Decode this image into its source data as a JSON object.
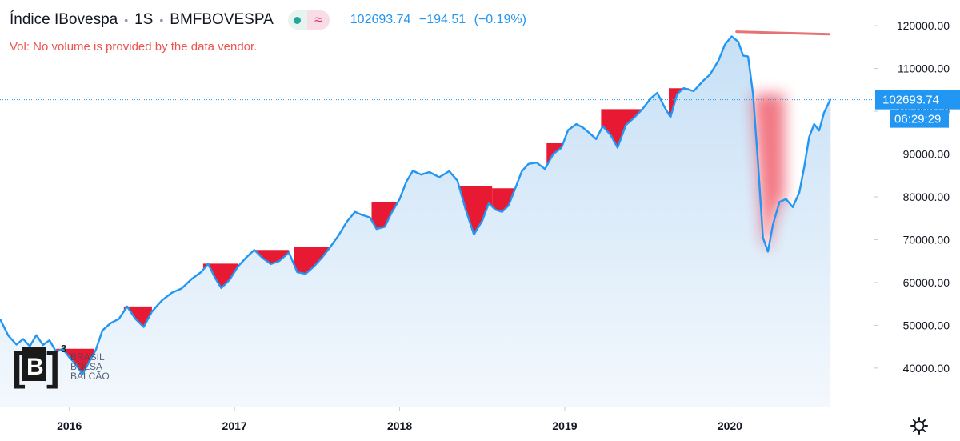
{
  "header": {
    "symbol_name": "Índice IBovespa",
    "interval": "1S",
    "exchange": "BMFBOVESPA",
    "wave_icon": "≈",
    "last_price": "102693.74",
    "change": "−194.51",
    "change_pct": "(−0.19%)"
  },
  "volume_notice": "Vol: No volume is provided by the data vendor.",
  "price_label": {
    "price": "102693.74",
    "countdown": "06:29:29"
  },
  "logo": {
    "mark": "B",
    "superscript": "3",
    "lines": [
      "BRASIL",
      "BOLSA",
      "BALCÃO"
    ]
  },
  "icons": {
    "settings": "gear-icon",
    "status": "status-dot-icon",
    "wave": "wave-icon"
  },
  "colors": {
    "line": "#2196f3",
    "area_top": "#c7e0f6",
    "area_bottom": "#f3f8fd",
    "highlight": "#e81a33",
    "axis_text": "#131722",
    "price_tag": "#2196f3"
  },
  "chart_data": {
    "type": "area",
    "title": "Índice IBovespa",
    "x_ticks": [
      "2016",
      "2017",
      "2018",
      "2019",
      "2020"
    ],
    "y_ticks": [
      "120000.00",
      "110000.00",
      "100000.00",
      "90000.00",
      "80000.00",
      "70000.00",
      "60000.00",
      "50000.00",
      "40000.00"
    ],
    "ylim": [
      31000,
      126000
    ],
    "xlim": [
      2015.58,
      2020.87
    ],
    "last_value": 102693.74,
    "series": [
      {
        "values": [
          [
            2015.58,
            51500
          ],
          [
            2015.63,
            47600
          ],
          [
            2015.68,
            45500
          ],
          [
            2015.72,
            46800
          ],
          [
            2015.76,
            45100
          ],
          [
            2015.8,
            47700
          ],
          [
            2015.84,
            45400
          ],
          [
            2015.88,
            46500
          ],
          [
            2015.92,
            43800
          ],
          [
            2015.96,
            44500
          ],
          [
            2016.0,
            42500
          ],
          [
            2016.04,
            40800
          ],
          [
            2016.08,
            38600
          ],
          [
            2016.12,
            41500
          ],
          [
            2016.16,
            44200
          ],
          [
            2016.2,
            48800
          ],
          [
            2016.25,
            50500
          ],
          [
            2016.3,
            51500
          ],
          [
            2016.35,
            54400
          ],
          [
            2016.4,
            51500
          ],
          [
            2016.45,
            49600
          ],
          [
            2016.5,
            53200
          ],
          [
            2016.56,
            55800
          ],
          [
            2016.62,
            57600
          ],
          [
            2016.68,
            58600
          ],
          [
            2016.74,
            60800
          ],
          [
            2016.8,
            62500
          ],
          [
            2016.84,
            64400
          ],
          [
            2016.88,
            61200
          ],
          [
            2016.92,
            58700
          ],
          [
            2016.97,
            60600
          ],
          [
            2017.02,
            63700
          ],
          [
            2017.07,
            65800
          ],
          [
            2017.12,
            67600
          ],
          [
            2017.17,
            65700
          ],
          [
            2017.22,
            64300
          ],
          [
            2017.27,
            65000
          ],
          [
            2017.33,
            67000
          ],
          [
            2017.38,
            62400
          ],
          [
            2017.43,
            62000
          ],
          [
            2017.48,
            63700
          ],
          [
            2017.53,
            65800
          ],
          [
            2017.58,
            68300
          ],
          [
            2017.63,
            71000
          ],
          [
            2017.68,
            74200
          ],
          [
            2017.73,
            76500
          ],
          [
            2017.77,
            75800
          ],
          [
            2017.82,
            75200
          ],
          [
            2017.86,
            72500
          ],
          [
            2017.91,
            73000
          ],
          [
            2017.95,
            76200
          ],
          [
            2018.0,
            79500
          ],
          [
            2018.04,
            83500
          ],
          [
            2018.08,
            86100
          ],
          [
            2018.13,
            85200
          ],
          [
            2018.18,
            85800
          ],
          [
            2018.24,
            84600
          ],
          [
            2018.3,
            86000
          ],
          [
            2018.35,
            83800
          ],
          [
            2018.4,
            77000
          ],
          [
            2018.45,
            71200
          ],
          [
            2018.5,
            74400
          ],
          [
            2018.54,
            78500
          ],
          [
            2018.58,
            77000
          ],
          [
            2018.62,
            76500
          ],
          [
            2018.66,
            78000
          ],
          [
            2018.7,
            82000
          ],
          [
            2018.74,
            86000
          ],
          [
            2018.78,
            87700
          ],
          [
            2018.83,
            88000
          ],
          [
            2018.88,
            86500
          ],
          [
            2018.93,
            90000
          ],
          [
            2018.98,
            91500
          ],
          [
            2019.02,
            95600
          ],
          [
            2019.07,
            97000
          ],
          [
            2019.11,
            96200
          ],
          [
            2019.15,
            94900
          ],
          [
            2019.19,
            93500
          ],
          [
            2019.23,
            96500
          ],
          [
            2019.28,
            94300
          ],
          [
            2019.32,
            91500
          ],
          [
            2019.37,
            96800
          ],
          [
            2019.42,
            98500
          ],
          [
            2019.47,
            100500
          ],
          [
            2019.52,
            103000
          ],
          [
            2019.56,
            104300
          ],
          [
            2019.6,
            101300
          ],
          [
            2019.64,
            98600
          ],
          [
            2019.68,
            104000
          ],
          [
            2019.72,
            105400
          ],
          [
            2019.78,
            104700
          ],
          [
            2019.84,
            107200
          ],
          [
            2019.88,
            108600
          ],
          [
            2019.93,
            111800
          ],
          [
            2019.97,
            115600
          ],
          [
            2020.01,
            117500
          ],
          [
            2020.05,
            116300
          ],
          [
            2020.08,
            113000
          ],
          [
            2020.11,
            112800
          ],
          [
            2020.14,
            104000
          ],
          [
            2020.17,
            88000
          ],
          [
            2020.2,
            70500
          ],
          [
            2020.23,
            67200
          ],
          [
            2020.26,
            73500
          ],
          [
            2020.3,
            78800
          ],
          [
            2020.34,
            79500
          ],
          [
            2020.38,
            77600
          ],
          [
            2020.42,
            81000
          ],
          [
            2020.45,
            87000
          ],
          [
            2020.48,
            94000
          ],
          [
            2020.51,
            97000
          ],
          [
            2020.54,
            95500
          ],
          [
            2020.57,
            99700
          ],
          [
            2020.61,
            102900
          ]
        ]
      }
    ],
    "highlight_ranges": [
      [
        2015.92,
        2016.15
      ],
      [
        2016.33,
        2016.5
      ],
      [
        2016.81,
        2017.02
      ],
      [
        2017.12,
        2017.33
      ],
      [
        2017.36,
        2017.58
      ],
      [
        2017.83,
        2017.99
      ],
      [
        2018.36,
        2018.56
      ],
      [
        2018.56,
        2018.7
      ],
      [
        2018.89,
        2018.99
      ],
      [
        2019.22,
        2019.47
      ],
      [
        2019.63,
        2019.75
      ],
      [
        2020.14,
        2020.33
      ]
    ],
    "resistance_line": [
      [
        2020.04,
        118600
      ],
      [
        2020.6,
        118000
      ]
    ],
    "grid": false
  }
}
